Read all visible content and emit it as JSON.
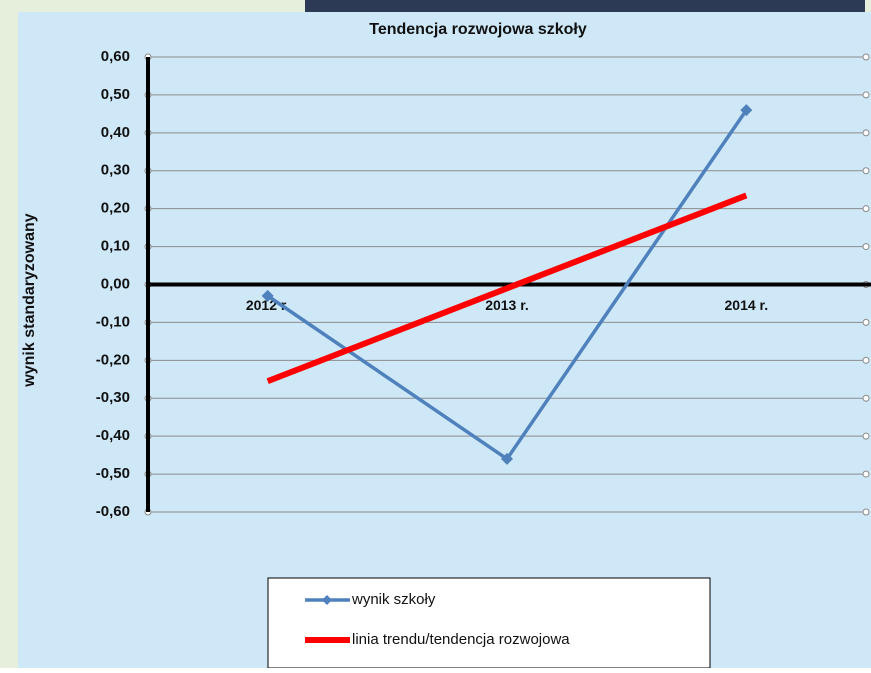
{
  "chart_data": {
    "type": "line",
    "title": "Tendencja rozwojowa szkoły",
    "y_label": "wynik standaryzowany",
    "categories": [
      "2012 r.",
      "2013 r.",
      "2014 r."
    ],
    "series": [
      {
        "name": "wynik szkoły",
        "color": "#4f81bd",
        "values": [
          -0.03,
          -0.46,
          0.46
        ],
        "markers": true
      },
      {
        "name": "linia trendu/tendencja rozwojowa",
        "color": "#ff0000",
        "values": [
          -0.255,
          -0.01,
          0.235
        ],
        "markers": false
      }
    ],
    "ylim": [
      -0.6,
      0.6
    ],
    "yticks": [
      {
        "value": 0.6,
        "label": "0,60"
      },
      {
        "value": 0.5,
        "label": "0,50"
      },
      {
        "value": 0.4,
        "label": "0,40"
      },
      {
        "value": 0.3,
        "label": "0,30"
      },
      {
        "value": 0.2,
        "label": "0,20"
      },
      {
        "value": 0.1,
        "label": "0,10"
      },
      {
        "value": 0,
        "label": "0,00"
      },
      {
        "value": -0.1,
        "label": "-0,10"
      },
      {
        "value": -0.2,
        "label": "-0,20"
      },
      {
        "value": -0.3,
        "label": "-0,30"
      },
      {
        "value": -0.4,
        "label": "-0,40"
      },
      {
        "value": -0.5,
        "label": "-0,50"
      },
      {
        "value": -0.6,
        "label": "-0,60"
      }
    ],
    "grid": true,
    "legend": "bottom"
  }
}
